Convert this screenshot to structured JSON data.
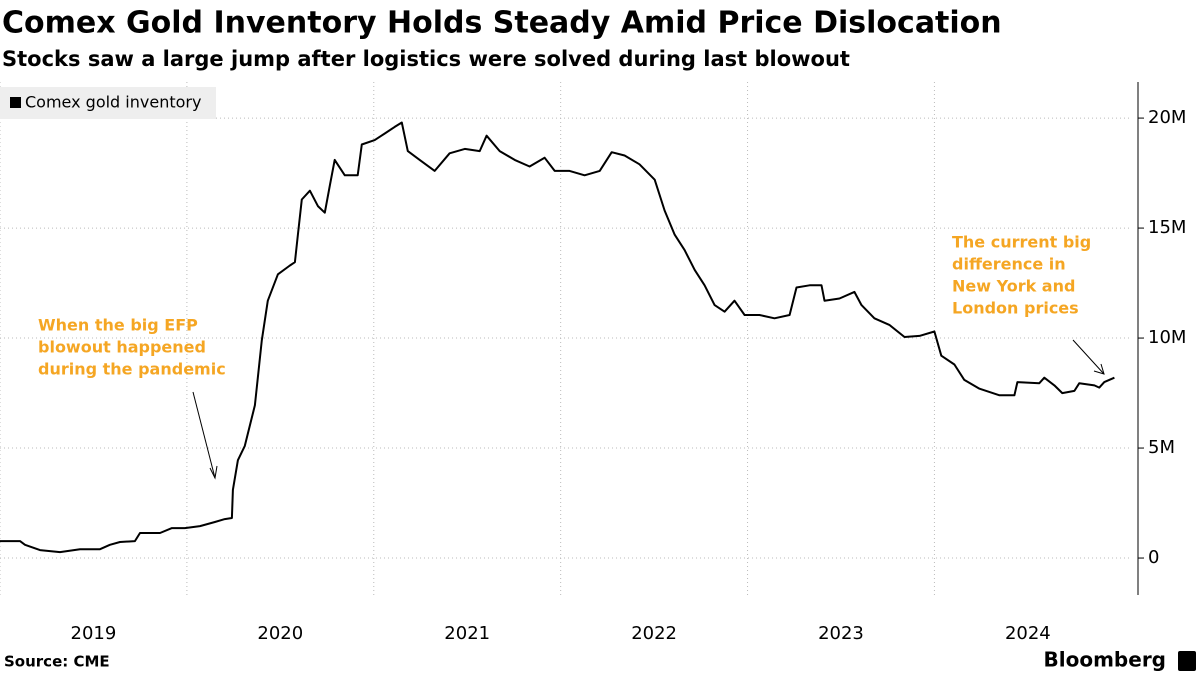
{
  "chart_data": {
    "type": "line",
    "title": "Comex Gold Inventory Holds Steady Amid Price Dislocation",
    "subtitle": "Stocks saw a large jump after logistics were solved during last blowout",
    "source": "Source: CME",
    "brand": "Bloomberg",
    "xlim": [
      2019,
      2025.1
    ],
    "xticks": [
      2019,
      2020,
      2021,
      2022,
      2023,
      2024
    ],
    "ylim": [
      -1.68,
      21.64
    ],
    "yticks": [
      0,
      {
        "value": 5,
        "label": "5M"
      },
      {
        "value": 10,
        "label": "10M"
      },
      {
        "value": 15,
        "label": "15M"
      },
      {
        "value": 20,
        "label": "20M"
      }
    ],
    "grid": true,
    "legend": "top-left",
    "annotations": [
      {
        "lines": [
          "When the big EFP",
          "blowout happened",
          "during the pandemic"
        ],
        "color": "#f5a623"
      },
      {
        "lines": [
          "The current big",
          "difference in",
          "New York and",
          "London prices"
        ],
        "color": "#f5a623"
      }
    ],
    "series": [
      {
        "name": "Comex gold inventory",
        "color": "#000000",
        "x": [
          2019.0,
          2019.107,
          2019.134,
          2019.214,
          2019.321,
          2019.428,
          2019.535,
          2019.588,
          2019.642,
          2019.722,
          2019.749,
          2019.856,
          2019.92,
          2019.989,
          2020.07,
          2020.15,
          2020.203,
          2020.241,
          2020.246,
          2020.273,
          2020.31,
          2020.364,
          2020.401,
          2020.433,
          2020.487,
          2020.551,
          2020.578,
          2020.594,
          2020.615,
          2020.658,
          2020.701,
          2020.738,
          2020.765,
          2020.791,
          2020.845,
          2020.914,
          2020.936,
          2021.005,
          2021.059,
          2021.112,
          2021.15,
          2021.182,
          2021.246,
          2021.326,
          2021.406,
          2021.487,
          2021.567,
          2021.604,
          2021.674,
          2021.754,
          2021.834,
          2021.914,
          2021.968,
          2022.048,
          2022.128,
          2022.209,
          2022.273,
          2022.342,
          2022.422,
          2022.503,
          2022.556,
          2022.61,
          2022.663,
          2022.717,
          2022.77,
          2022.824,
          2022.877,
          2022.93,
          2022.984,
          2023.064,
          2023.144,
          2023.225,
          2023.262,
          2023.332,
          2023.396,
          2023.412,
          2023.492,
          2023.572,
          2023.61,
          2023.679,
          2023.759,
          2023.84,
          2023.92,
          2024.0,
          2024.037,
          2024.107,
          2024.16,
          2024.241,
          2024.348,
          2024.428,
          2024.444,
          2024.561,
          2024.588,
          2024.642,
          2024.684,
          2024.749,
          2024.775,
          2024.856,
          2024.882,
          2024.909,
          2024.963
        ],
        "values": [
          0.77,
          0.77,
          0.6,
          0.36,
          0.27,
          0.4,
          0.4,
          0.6,
          0.73,
          0.77,
          1.14,
          1.14,
          1.36,
          1.36,
          1.45,
          1.64,
          1.77,
          1.82,
          3.1,
          4.45,
          5.1,
          6.95,
          9.9,
          11.7,
          12.9,
          13.3,
          13.45,
          14.7,
          16.3,
          16.7,
          16.0,
          15.7,
          16.95,
          18.1,
          17.4,
          17.4,
          18.8,
          19.0,
          19.3,
          19.6,
          19.8,
          18.5,
          18.1,
          17.6,
          18.4,
          18.6,
          18.5,
          19.2,
          18.5,
          18.1,
          17.8,
          18.2,
          17.6,
          17.6,
          17.4,
          17.6,
          18.45,
          18.3,
          17.9,
          17.2,
          15.8,
          14.7,
          14.0,
          13.1,
          12.4,
          11.5,
          11.2,
          11.7,
          11.05,
          11.05,
          10.9,
          11.05,
          12.3,
          12.4,
          12.4,
          11.7,
          11.8,
          12.1,
          11.5,
          10.9,
          10.6,
          10.05,
          10.1,
          10.3,
          9.2,
          8.8,
          8.1,
          7.7,
          7.4,
          7.4,
          8.0,
          7.95,
          8.2,
          7.85,
          7.5,
          7.6,
          7.95,
          7.85,
          7.75,
          8.0,
          8.2
        ]
      }
    ]
  }
}
